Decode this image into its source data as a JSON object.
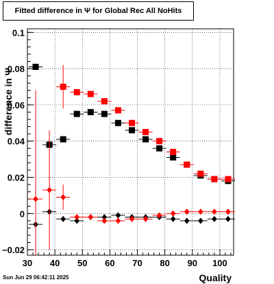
{
  "chart_data": {
    "type": "scatter",
    "title": "Fitted difference in  Ψ  for Global Rec All NoHits",
    "xlabel": "Quality",
    "ylabel": "difference in  Ψ",
    "xlim": [
      30,
      105
    ],
    "ylim": [
      -0.023,
      0.102
    ],
    "x_ticks": [
      30,
      40,
      50,
      60,
      70,
      80,
      90,
      100
    ],
    "y_ticks": [
      -0.02,
      0,
      0.02,
      0.04,
      0.06,
      0.08,
      0.1
    ],
    "y_tick_labels": [
      "−0.02",
      "0",
      "0.02",
      "0.04",
      "0.06",
      "0.08",
      "0.1"
    ],
    "grid": true,
    "series": [
      {
        "marker": "square",
        "color": "#000000",
        "points": [
          {
            "x": 33,
            "y": 0.081,
            "xerr": 2.5,
            "yerr": 0
          },
          {
            "x": 38,
            "y": 0.038,
            "xerr": 2.5,
            "yerr": 0
          },
          {
            "x": 43,
            "y": 0.041,
            "xerr": 2.5,
            "yerr": 0
          },
          {
            "x": 48,
            "y": 0.055,
            "xerr": 2.5,
            "yerr": 0
          },
          {
            "x": 53,
            "y": 0.056,
            "xerr": 2.5,
            "yerr": 0
          },
          {
            "x": 58,
            "y": 0.055,
            "xerr": 2.5,
            "yerr": 0
          },
          {
            "x": 63,
            "y": 0.05,
            "xerr": 2.5,
            "yerr": 0
          },
          {
            "x": 68,
            "y": 0.046,
            "xerr": 2.5,
            "yerr": 0
          },
          {
            "x": 73,
            "y": 0.041,
            "xerr": 2.5,
            "yerr": 0
          },
          {
            "x": 78,
            "y": 0.036,
            "xerr": 2.5,
            "yerr": 0
          },
          {
            "x": 83,
            "y": 0.031,
            "xerr": 2.5,
            "yerr": 0
          },
          {
            "x": 88,
            "y": 0.027,
            "xerr": 2.5,
            "yerr": 0
          },
          {
            "x": 93,
            "y": 0.021,
            "xerr": 2.5,
            "yerr": 0
          },
          {
            "x": 98,
            "y": 0.019,
            "xerr": 2.5,
            "yerr": 0
          },
          {
            "x": 103,
            "y": 0.018,
            "xerr": 2.5,
            "yerr": 0
          }
        ]
      },
      {
        "marker": "square",
        "color": "#ff0000",
        "points": [
          {
            "x": 43,
            "y": 0.07,
            "xerr": 2.5,
            "yerr": 0.012
          },
          {
            "x": 48,
            "y": 0.067,
            "xerr": 2.5,
            "yerr": 0
          },
          {
            "x": 53,
            "y": 0.066,
            "xerr": 2.5,
            "yerr": 0
          },
          {
            "x": 58,
            "y": 0.062,
            "xerr": 2.5,
            "yerr": 0
          },
          {
            "x": 63,
            "y": 0.057,
            "xerr": 2.5,
            "yerr": 0
          },
          {
            "x": 68,
            "y": 0.05,
            "xerr": 2.5,
            "yerr": 0
          },
          {
            "x": 73,
            "y": 0.045,
            "xerr": 2.5,
            "yerr": 0
          },
          {
            "x": 78,
            "y": 0.04,
            "xerr": 2.5,
            "yerr": 0
          },
          {
            "x": 83,
            "y": 0.034,
            "xerr": 2.5,
            "yerr": 0
          },
          {
            "x": 88,
            "y": 0.027,
            "xerr": 2.5,
            "yerr": 0
          },
          {
            "x": 93,
            "y": 0.022,
            "xerr": 2.5,
            "yerr": 0
          },
          {
            "x": 98,
            "y": 0.019,
            "xerr": 2.5,
            "yerr": 0
          },
          {
            "x": 103,
            "y": 0.019,
            "xerr": 2.5,
            "yerr": 0
          }
        ]
      },
      {
        "marker": "diamond",
        "color": "#000000",
        "points": [
          {
            "x": 33,
            "y": -0.006,
            "xerr": 2.5,
            "yerr": 0
          },
          {
            "x": 38,
            "y": 0.001,
            "xerr": 2.5,
            "yerr": 0
          },
          {
            "x": 43,
            "y": -0.003,
            "xerr": 2.5,
            "yerr": 0
          },
          {
            "x": 48,
            "y": -0.004,
            "xerr": 2.5,
            "yerr": 0
          },
          {
            "x": 53,
            "y": -0.002,
            "xerr": 2.5,
            "yerr": 0
          },
          {
            "x": 58,
            "y": -0.002,
            "xerr": 2.5,
            "yerr": 0
          },
          {
            "x": 63,
            "y": -0.001,
            "xerr": 2.5,
            "yerr": 0
          },
          {
            "x": 68,
            "y": -0.002,
            "xerr": 2.5,
            "yerr": 0
          },
          {
            "x": 73,
            "y": -0.002,
            "xerr": 2.5,
            "yerr": 0
          },
          {
            "x": 78,
            "y": -0.002,
            "xerr": 2.5,
            "yerr": 0
          },
          {
            "x": 83,
            "y": -0.003,
            "xerr": 2.5,
            "yerr": 0
          },
          {
            "x": 88,
            "y": -0.004,
            "xerr": 2.5,
            "yerr": 0
          },
          {
            "x": 93,
            "y": -0.004,
            "xerr": 2.5,
            "yerr": 0
          },
          {
            "x": 98,
            "y": -0.003,
            "xerr": 2.5,
            "yerr": 0
          },
          {
            "x": 103,
            "y": -0.003,
            "xerr": 2.5,
            "yerr": 0
          }
        ]
      },
      {
        "marker": "diamond",
        "color": "#ff0000",
        "points": [
          {
            "x": 33,
            "y": 0.008,
            "xerr": 2.5,
            "yerr": 0.06
          },
          {
            "x": 38,
            "y": 0.013,
            "xerr": 2.5,
            "yerr": 0.033
          },
          {
            "x": 43,
            "y": 0.009,
            "xerr": 2.5,
            "yerr": 0.007
          },
          {
            "x": 48,
            "y": -0.002,
            "xerr": 2.5,
            "yerr": 0
          },
          {
            "x": 53,
            "y": -0.002,
            "xerr": 2.5,
            "yerr": 0
          },
          {
            "x": 58,
            "y": -0.004,
            "xerr": 2.5,
            "yerr": 0
          },
          {
            "x": 63,
            "y": -0.004,
            "xerr": 2.5,
            "yerr": 0
          },
          {
            "x": 68,
            "y": -0.003,
            "xerr": 2.5,
            "yerr": 0
          },
          {
            "x": 73,
            "y": -0.003,
            "xerr": 2.5,
            "yerr": 0
          },
          {
            "x": 78,
            "y": -0.001,
            "xerr": 2.5,
            "yerr": 0
          },
          {
            "x": 83,
            "y": 0.0,
            "xerr": 2.5,
            "yerr": 0
          },
          {
            "x": 88,
            "y": 0.001,
            "xerr": 2.5,
            "yerr": 0
          },
          {
            "x": 93,
            "y": 0.001,
            "xerr": 2.5,
            "yerr": 0
          },
          {
            "x": 98,
            "y": 0.001,
            "xerr": 2.5,
            "yerr": 0
          },
          {
            "x": 103,
            "y": 0.001,
            "xerr": 2.5,
            "yerr": 0
          }
        ]
      }
    ]
  },
  "footer": {
    "timestamp": "Sun Jun 29 06:42:11 2025"
  }
}
